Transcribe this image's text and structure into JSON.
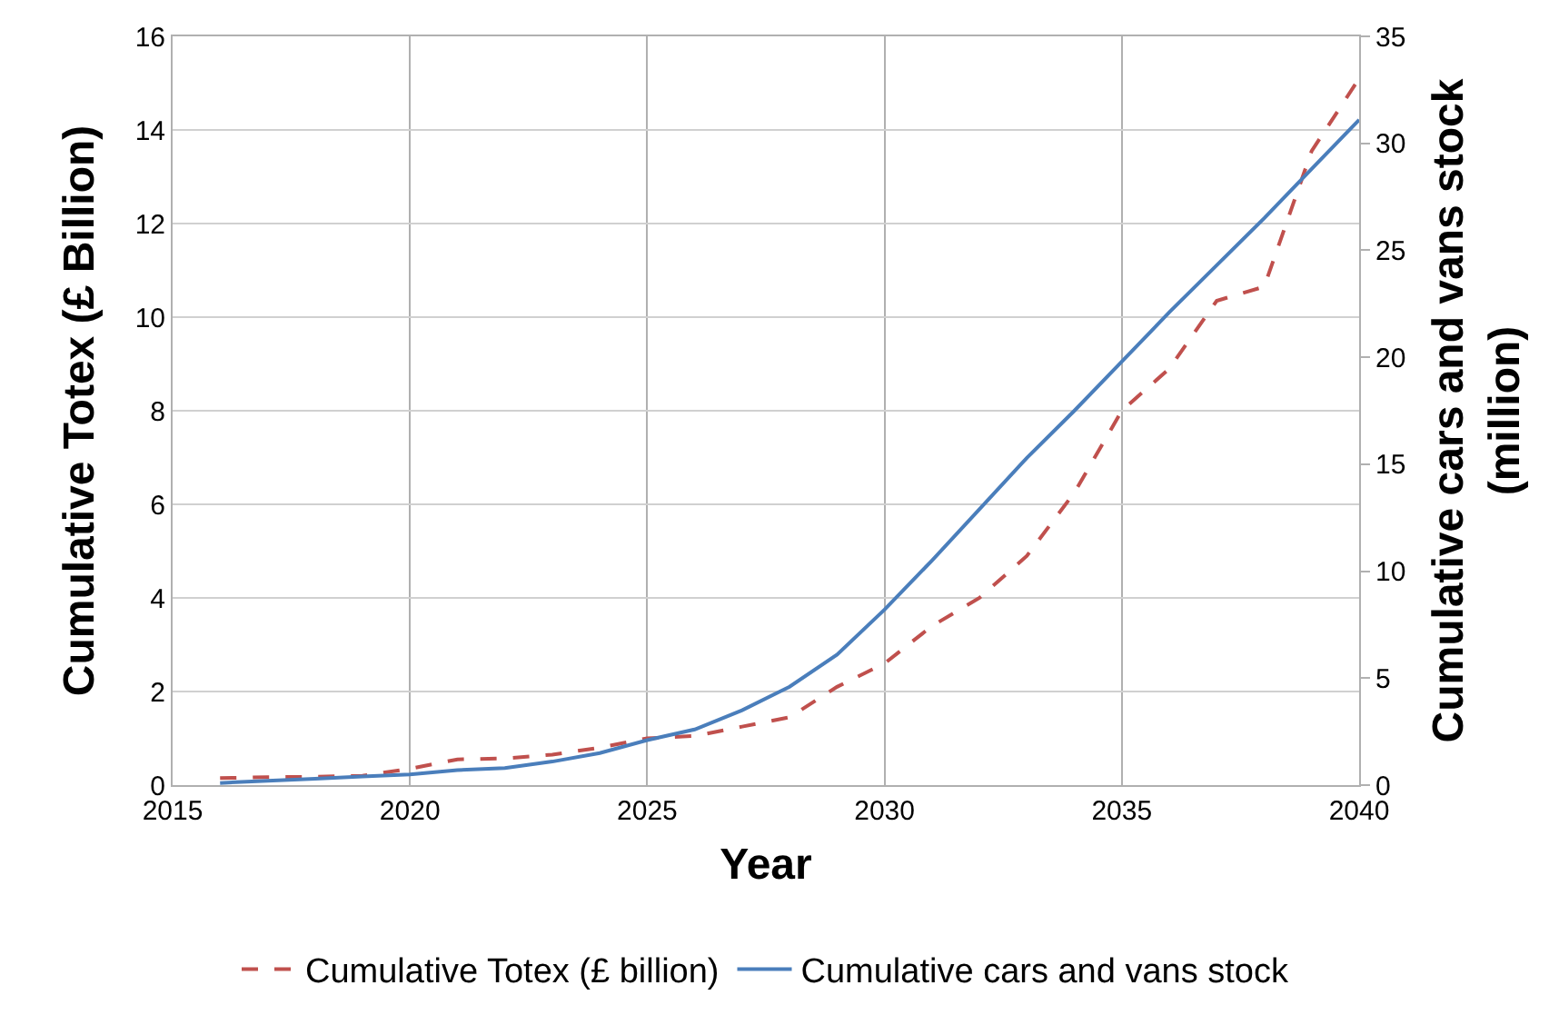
{
  "chart_data": {
    "type": "line",
    "xlabel": "Year",
    "ylabel": "Cumulative Totex (£ Billion)",
    "y2label": "Cumulative cars and vans stock\n(million)",
    "x": [
      2016,
      2017,
      2018,
      2019,
      2020,
      2021,
      2022,
      2023,
      2024,
      2025,
      2026,
      2027,
      2028,
      2029,
      2030,
      2031,
      2032,
      2033,
      2034,
      2035,
      2036,
      2037,
      2038,
      2039,
      2040
    ],
    "series": [
      {
        "name": "Cumulative Totex (£ billion)",
        "color": "#c0504d",
        "line_style": "dashed",
        "values": [
          0.15,
          0.17,
          0.18,
          0.2,
          0.35,
          0.55,
          0.57,
          0.65,
          0.8,
          1.0,
          1.05,
          1.25,
          1.45,
          2.1,
          2.6,
          3.4,
          4.0,
          4.9,
          6.25,
          8.0,
          8.9,
          10.35,
          10.65,
          13.55,
          15.1
        ]
      },
      {
        "name": "Cumulative cars and vans stock",
        "color": "#4a7ebb",
        "line_style": "solid",
        "axis": "y2",
        "values": [
          0.1,
          0.2,
          0.3,
          0.4,
          0.5,
          0.7,
          0.8,
          1.1,
          1.5,
          2.1,
          2.6,
          3.5,
          4.6,
          6.1,
          8.2,
          10.5,
          12.9,
          15.3,
          17.5,
          19.8,
          22.1,
          24.3,
          26.5,
          28.8,
          31.1
        ]
      }
    ],
    "xlim": [
      2015,
      2040
    ],
    "xticks": [
      2015,
      2020,
      2025,
      2030,
      2035,
      2040
    ],
    "ylim": [
      0,
      16
    ],
    "yticks": [
      0,
      2,
      4,
      6,
      8,
      10,
      12,
      14,
      16
    ],
    "y2lim": [
      0,
      35
    ],
    "y2ticks": [
      0,
      5,
      10,
      15,
      20,
      25,
      30,
      35
    ],
    "grid": true,
    "legend": "bottom",
    "marker": "none"
  }
}
